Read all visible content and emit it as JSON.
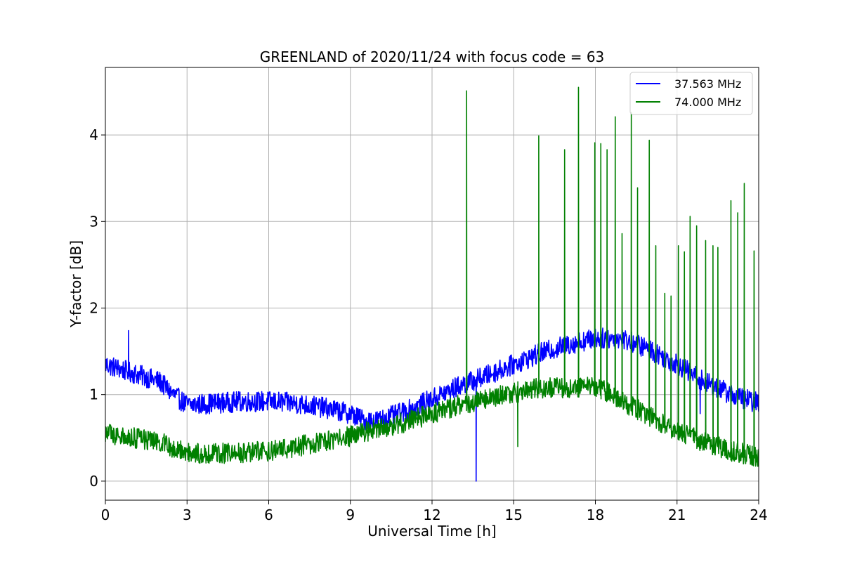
{
  "chart_data": {
    "type": "line",
    "title": "GREENLAND of 2020/11/24 with focus code = 63",
    "xlabel": "Universal Time [h]",
    "ylabel": "Y-factor [dB]",
    "xlim": [
      0,
      24
    ],
    "ylim": [
      -0.22,
      4.78
    ],
    "xticks": [
      0,
      3,
      6,
      9,
      12,
      15,
      18,
      21,
      24
    ],
    "yticks": [
      0,
      1,
      2,
      3,
      4
    ],
    "grid": true,
    "legend_position": "top-right",
    "series": [
      {
        "name": "37.563 MHz",
        "color": "#0000ff",
        "baseline": [
          [
            0,
            1.35
          ],
          [
            1,
            1.25
          ],
          [
            2,
            1.15
          ],
          [
            2.5,
            1.0
          ],
          [
            3,
            0.88
          ],
          [
            4,
            0.9
          ],
          [
            5,
            0.92
          ],
          [
            6,
            0.92
          ],
          [
            7,
            0.9
          ],
          [
            8,
            0.85
          ],
          [
            9,
            0.78
          ],
          [
            9.5,
            0.7
          ],
          [
            10,
            0.7
          ],
          [
            11,
            0.8
          ],
          [
            12,
            0.95
          ],
          [
            13,
            1.1
          ],
          [
            14,
            1.22
          ],
          [
            15,
            1.35
          ],
          [
            16,
            1.48
          ],
          [
            17,
            1.58
          ],
          [
            18,
            1.65
          ],
          [
            19,
            1.65
          ],
          [
            20,
            1.52
          ],
          [
            21,
            1.35
          ],
          [
            22,
            1.15
          ],
          [
            23,
            1.0
          ],
          [
            24,
            0.9
          ]
        ],
        "noise": 0.12,
        "spikes": [
          [
            0.85,
            1.74
          ],
          [
            13.62,
            0.0
          ],
          [
            21.85,
            0.78
          ]
        ]
      },
      {
        "name": "74.000 MHz",
        "color": "#008000",
        "baseline": [
          [
            0,
            0.55
          ],
          [
            1,
            0.5
          ],
          [
            2,
            0.45
          ],
          [
            2.5,
            0.38
          ],
          [
            3,
            0.33
          ],
          [
            4,
            0.32
          ],
          [
            5,
            0.33
          ],
          [
            6,
            0.35
          ],
          [
            7,
            0.4
          ],
          [
            8,
            0.45
          ],
          [
            9,
            0.52
          ],
          [
            10,
            0.6
          ],
          [
            11,
            0.68
          ],
          [
            12,
            0.78
          ],
          [
            13,
            0.88
          ],
          [
            14,
            0.95
          ],
          [
            15,
            1.02
          ],
          [
            16,
            1.08
          ],
          [
            17,
            1.08
          ],
          [
            18,
            1.1
          ],
          [
            19,
            0.92
          ],
          [
            20,
            0.75
          ],
          [
            21,
            0.58
          ],
          [
            22,
            0.45
          ],
          [
            23,
            0.35
          ],
          [
            24,
            0.28
          ]
        ],
        "noise": 0.12,
        "spikes": [
          [
            13.27,
            4.51
          ],
          [
            15.92,
            3.99
          ],
          [
            16.87,
            3.83
          ],
          [
            17.38,
            4.55
          ],
          [
            17.98,
            3.91
          ],
          [
            18.2,
            3.9
          ],
          [
            18.43,
            3.83
          ],
          [
            18.73,
            4.21
          ],
          [
            18.98,
            2.86
          ],
          [
            19.32,
            4.26
          ],
          [
            19.55,
            3.39
          ],
          [
            19.98,
            3.94
          ],
          [
            20.22,
            2.72
          ],
          [
            20.55,
            2.17
          ],
          [
            20.78,
            2.14
          ],
          [
            21.05,
            2.72
          ],
          [
            21.27,
            2.65
          ],
          [
            21.48,
            3.06
          ],
          [
            21.72,
            2.95
          ],
          [
            22.05,
            2.78
          ],
          [
            22.32,
            2.72
          ],
          [
            22.5,
            2.7
          ],
          [
            22.98,
            3.24
          ],
          [
            23.23,
            3.1
          ],
          [
            23.47,
            3.44
          ],
          [
            23.83,
            2.66
          ],
          [
            15.15,
            0.4
          ]
        ]
      }
    ]
  }
}
